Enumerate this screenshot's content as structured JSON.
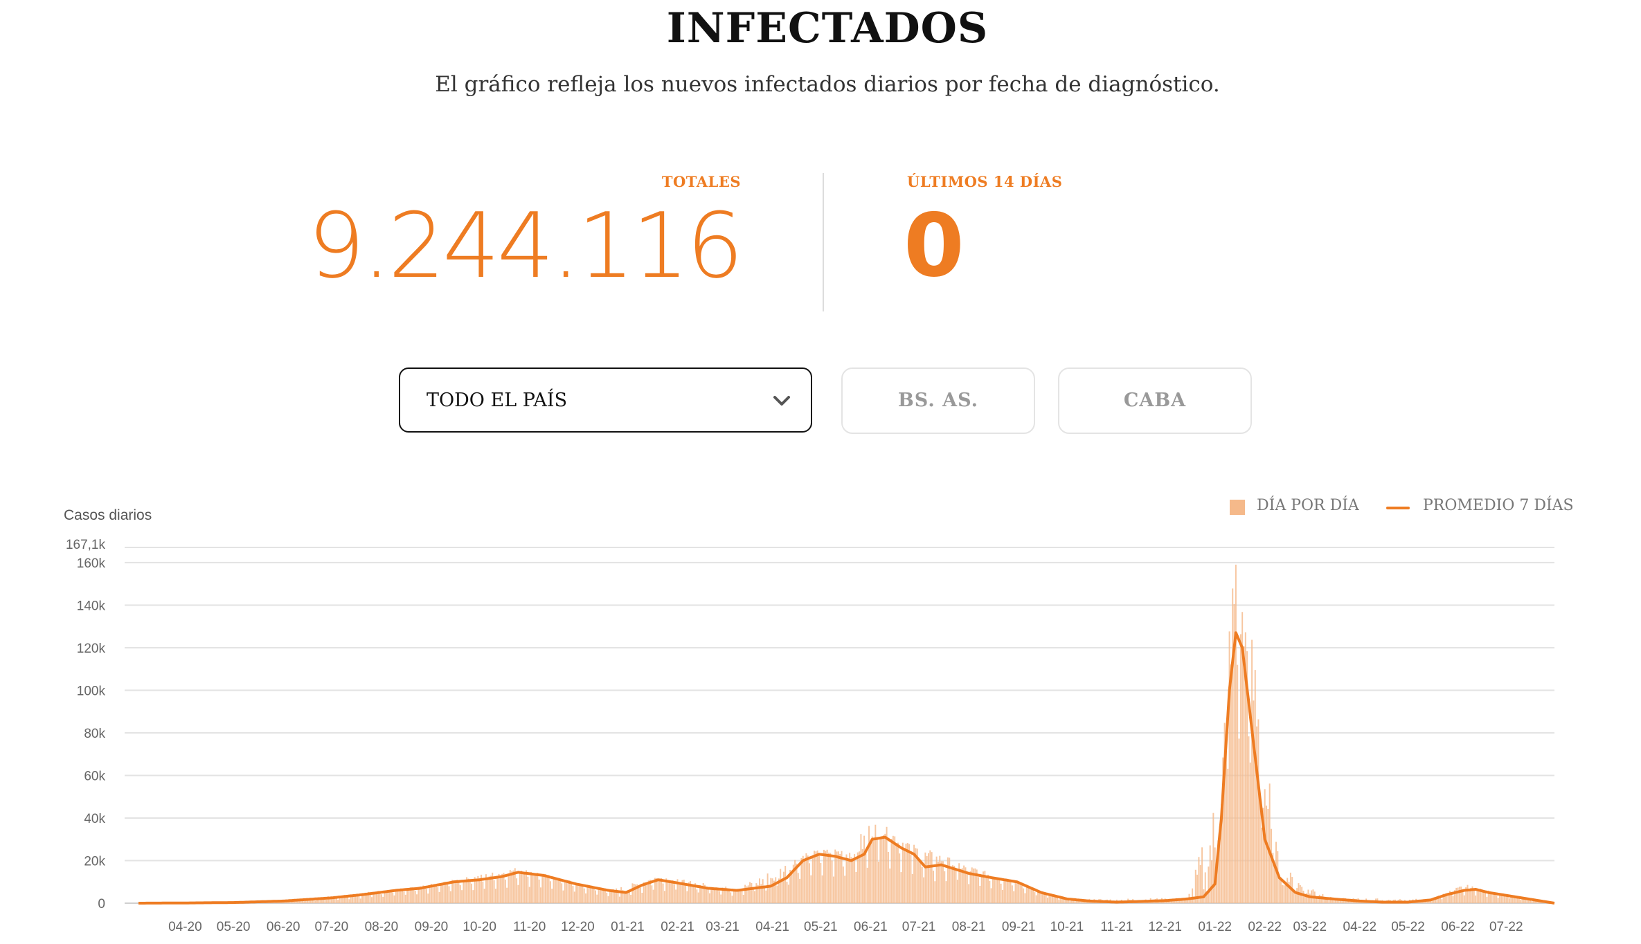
{
  "header": {
    "title": "INFECTADOS",
    "subtitle": "El gráfico refleja los nuevos infectados diarios por fecha de diagnóstico."
  },
  "stats": {
    "total_label": "TOTALES",
    "total_value": "9.244.116",
    "last14_label": "ÚLTIMOS 14 DÍAS",
    "last14_value": "0"
  },
  "filters": {
    "selected_region": "TODO EL PAÍS",
    "buttons": [
      "BS. AS.",
      "CABA"
    ]
  },
  "colors": {
    "accent": "#ee7c22",
    "bar": "#f5b98a",
    "grid": "#e3e3e3"
  },
  "chart_data": {
    "type": "bar",
    "ylabel": "Casos diarios",
    "legend": [
      "DÍA POR DÍA",
      "PROMEDIO 7 DÍAS"
    ],
    "legend_position": "top-right",
    "grid": true,
    "ylim": [
      0,
      167100
    ],
    "y_ticks": [
      "0",
      "20k",
      "40k",
      "60k",
      "80k",
      "100k",
      "120k",
      "140k",
      "160k",
      "167,1k"
    ],
    "y_tick_values": [
      0,
      20000,
      40000,
      60000,
      80000,
      100000,
      120000,
      140000,
      160000,
      167100
    ],
    "x_ticks": [
      "04-20",
      "05-20",
      "06-20",
      "07-20",
      "08-20",
      "09-20",
      "10-20",
      "11-20",
      "12-20",
      "01-21",
      "02-21",
      "03-21",
      "04-21",
      "05-21",
      "06-21",
      "07-21",
      "08-21",
      "09-21",
      "10-21",
      "11-21",
      "12-21",
      "01-22",
      "02-22",
      "03-22",
      "04-22",
      "05-22",
      "06-22",
      "07-22"
    ],
    "x_range": [
      "2020-03-03",
      "2022-07-31"
    ],
    "series": [
      {
        "name": "PROMEDIO 7 DÍAS",
        "x": [
          "2020-03-03",
          "2020-04-01",
          "2020-05-01",
          "2020-06-01",
          "2020-07-01",
          "2020-07-20",
          "2020-08-10",
          "2020-08-25",
          "2020-09-15",
          "2020-10-01",
          "2020-10-15",
          "2020-10-25",
          "2020-11-10",
          "2020-11-30",
          "2020-12-20",
          "2020-12-31",
          "2021-01-10",
          "2021-01-20",
          "2021-02-01",
          "2021-02-20",
          "2021-03-10",
          "2021-03-31",
          "2021-04-10",
          "2021-04-20",
          "2021-04-30",
          "2021-05-10",
          "2021-05-20",
          "2021-05-28",
          "2021-06-02",
          "2021-06-10",
          "2021-06-20",
          "2021-06-28",
          "2021-07-05",
          "2021-07-15",
          "2021-08-01",
          "2021-08-15",
          "2021-08-31",
          "2021-09-15",
          "2021-10-01",
          "2021-10-15",
          "2021-11-01",
          "2021-11-15",
          "2021-12-01",
          "2021-12-15",
          "2021-12-25",
          "2022-01-01",
          "2022-01-05",
          "2022-01-10",
          "2022-01-14",
          "2022-01-18",
          "2022-01-25",
          "2022-02-01",
          "2022-02-10",
          "2022-02-20",
          "2022-03-01",
          "2022-03-15",
          "2022-04-01",
          "2022-04-15",
          "2022-05-01",
          "2022-05-15",
          "2022-05-25",
          "2022-06-05",
          "2022-06-12",
          "2022-06-20",
          "2022-07-31"
        ],
        "values": [
          0,
          100,
          300,
          1000,
          2500,
          4000,
          6000,
          7000,
          10000,
          11000,
          12500,
          14500,
          13000,
          9000,
          6000,
          5000,
          8500,
          11000,
          9500,
          7000,
          6000,
          8000,
          12000,
          20000,
          23000,
          22000,
          20000,
          23000,
          30000,
          31000,
          26000,
          23000,
          17000,
          18000,
          14000,
          12000,
          10000,
          5000,
          2000,
          1000,
          500,
          800,
          1200,
          2000,
          3000,
          9000,
          40000,
          100000,
          127000,
          120000,
          75000,
          30000,
          12000,
          5000,
          3000,
          2000,
          1000,
          500,
          500,
          1500,
          4000,
          6000,
          6500,
          5000,
          0
        ]
      },
      {
        "name": "DÍA POR DÍA",
        "x": [
          "2020-03-03",
          "2020-06-01",
          "2020-08-25",
          "2020-10-25",
          "2020-12-20",
          "2021-01-20",
          "2021-03-10",
          "2021-04-20",
          "2021-05-20",
          "2021-06-02",
          "2021-06-28",
          "2021-08-15",
          "2021-10-01",
          "2021-12-15",
          "2022-01-05",
          "2022-01-10",
          "2022-01-14",
          "2022-01-18",
          "2022-01-25",
          "2022-02-10",
          "2022-03-15",
          "2022-05-15",
          "2022-06-05",
          "2022-06-20",
          "2022-07-31"
        ],
        "values": [
          0,
          1000,
          8000,
          17000,
          6000,
          13000,
          7000,
          24000,
          27000,
          40000,
          28000,
          14000,
          2000,
          2500,
          62000,
          140000,
          167100,
          140000,
          125000,
          18000,
          2500,
          2000,
          9000,
          6000,
          0
        ]
      }
    ]
  }
}
